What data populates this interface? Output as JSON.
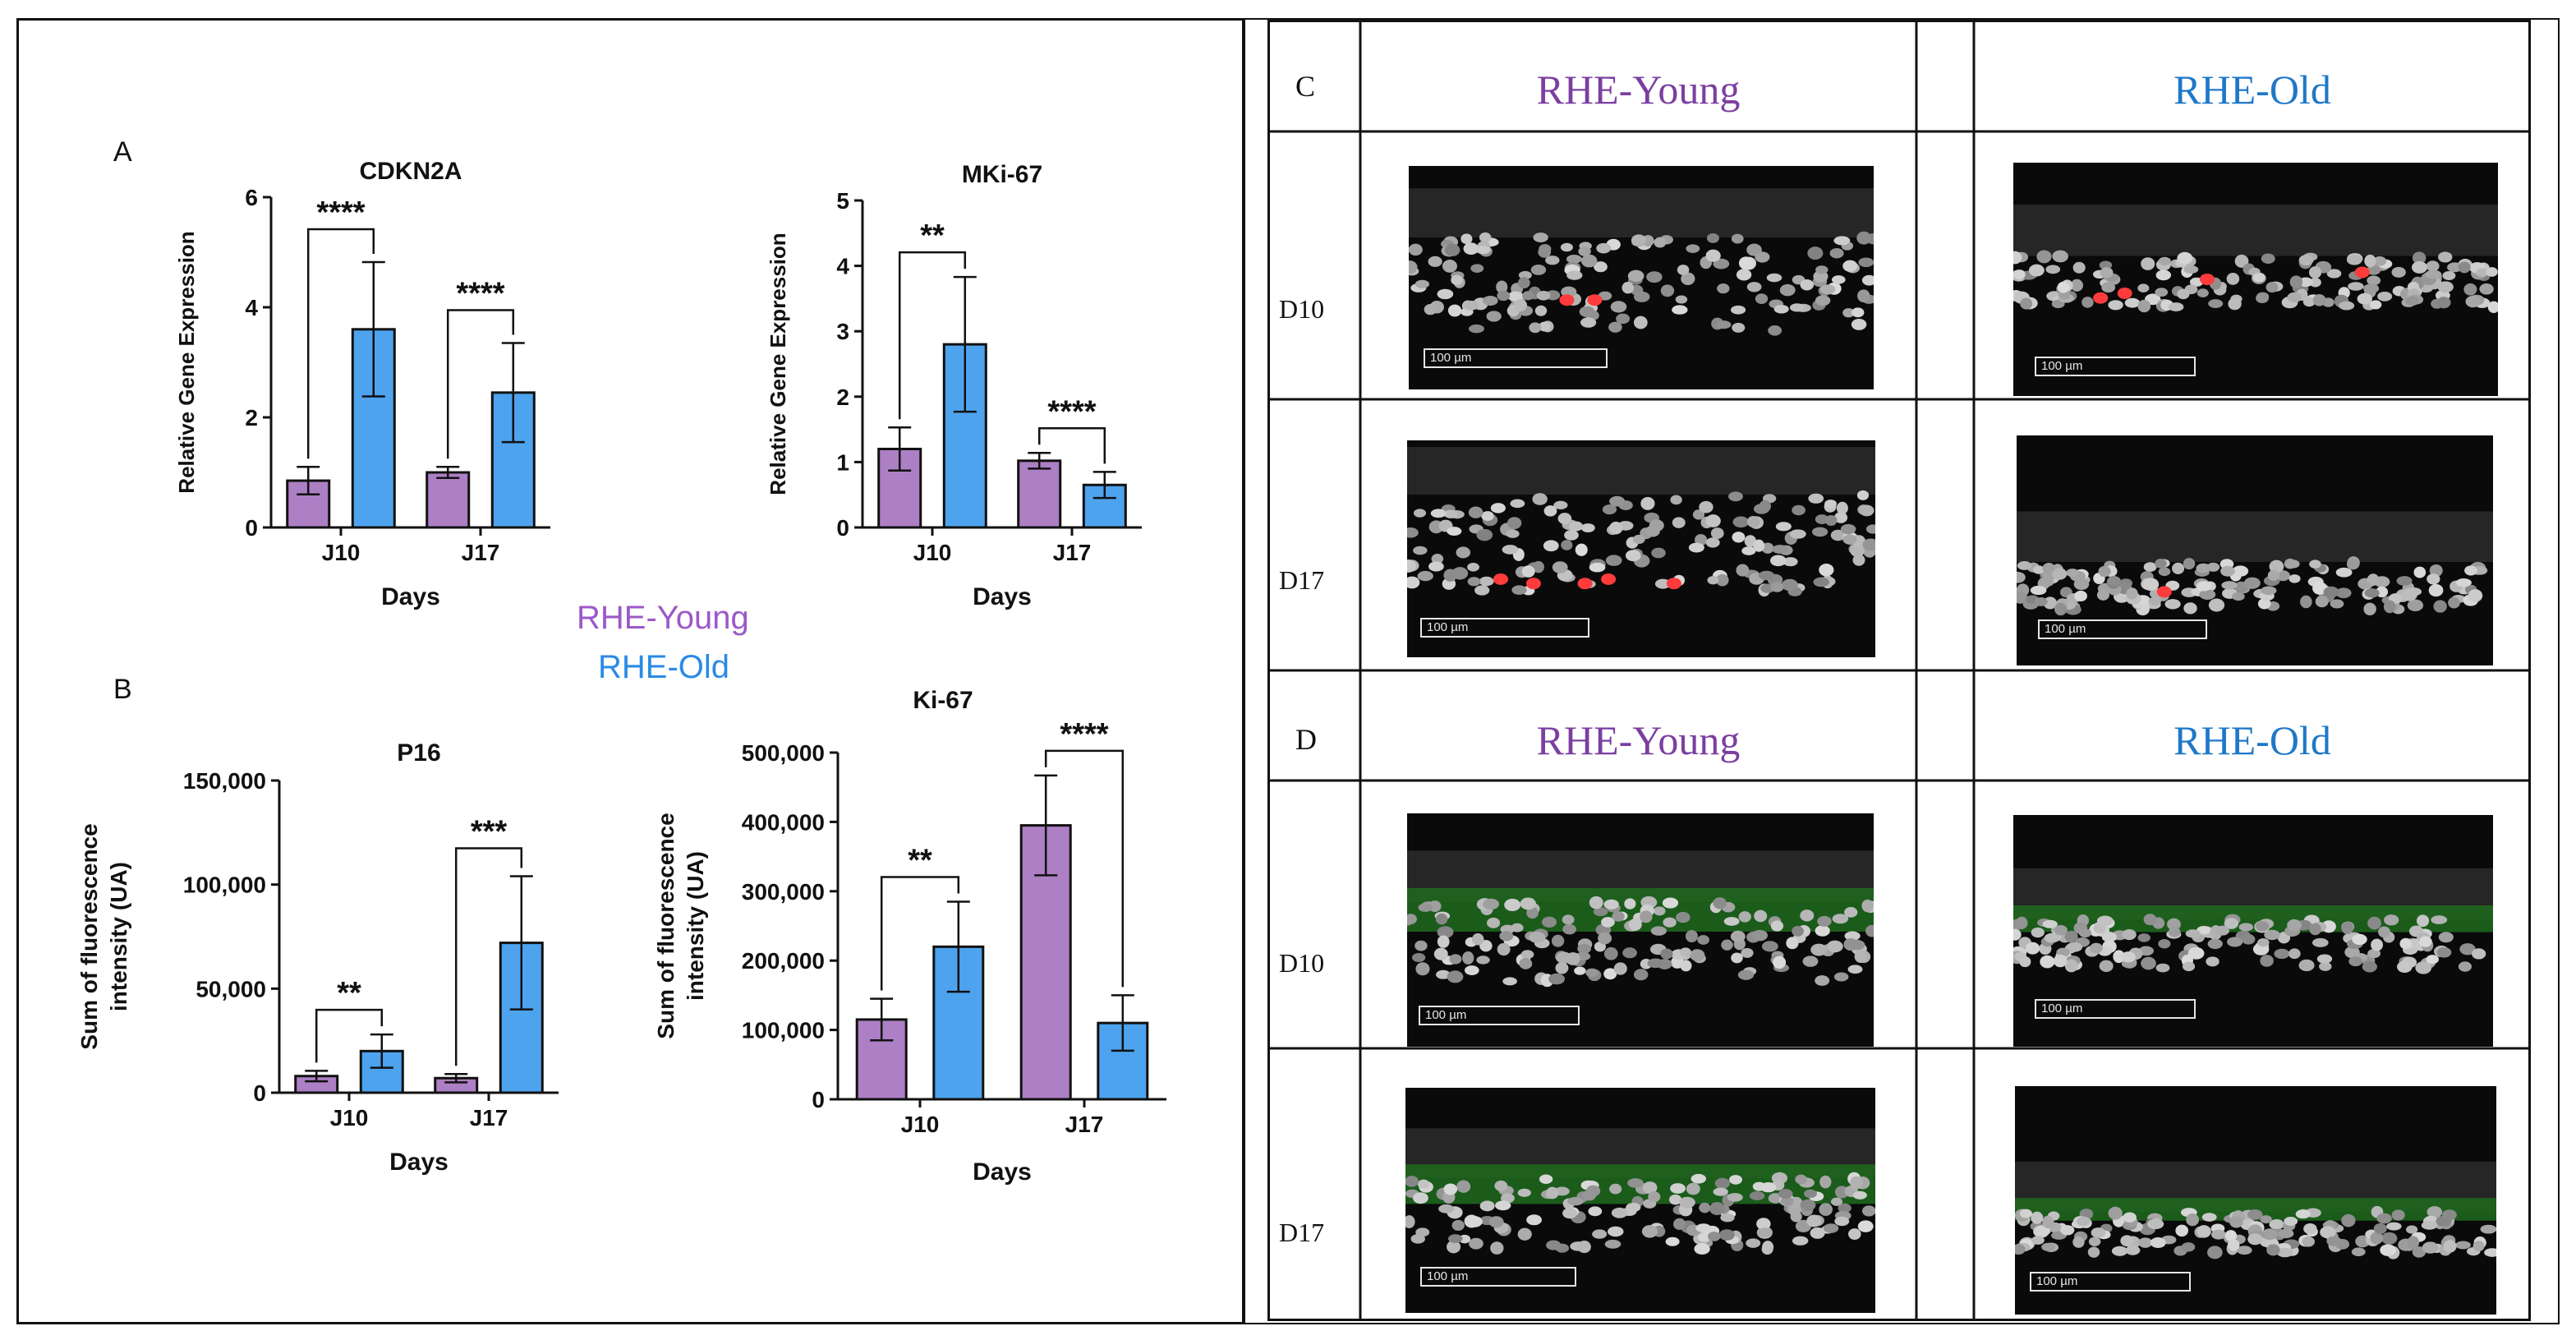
{
  "panel_labels": {
    "A": "A",
    "B": "B",
    "C": "C",
    "D": "D"
  },
  "legend": {
    "young": "RHE-Young",
    "old": "RHE-Old"
  },
  "colors": {
    "young": "#ad7fc4",
    "old": "#4da3ee",
    "young_text": "#7b3fa0",
    "old_text": "#1f78c8"
  },
  "chart_data": [
    {
      "id": "cdkn2a",
      "type": "bar",
      "title": "CDKN2A",
      "categories": [
        "J10",
        "J17"
      ],
      "series": [
        {
          "name": "RHE-Young",
          "values": [
            0.85,
            1.0
          ],
          "errors": [
            0.25,
            0.1
          ]
        },
        {
          "name": "RHE-Old",
          "values": [
            3.6,
            2.45
          ],
          "errors": [
            1.22,
            0.9
          ]
        }
      ],
      "xlabel": "Days",
      "ylabel": "Relative Gene Expression",
      "ylim": [
        0,
        6
      ],
      "yticks": [
        0,
        2,
        4,
        6
      ],
      "ytick_labels": [
        "0",
        "2",
        "4",
        "6"
      ],
      "significance": [
        "****",
        "****"
      ]
    },
    {
      "id": "mki67",
      "type": "bar",
      "title": "MKi-67",
      "categories": [
        "J10",
        "J17"
      ],
      "series": [
        {
          "name": "RHE-Young",
          "values": [
            1.2,
            1.02
          ],
          "errors": [
            0.33,
            0.12
          ]
        },
        {
          "name": "RHE-Old",
          "values": [
            2.8,
            0.65
          ],
          "errors": [
            1.03,
            0.2
          ]
        }
      ],
      "xlabel": "Days",
      "ylabel": "Relative Gene Expression",
      "ylim": [
        0,
        5
      ],
      "yticks": [
        0,
        1,
        2,
        3,
        4,
        5
      ],
      "ytick_labels": [
        "0",
        "1",
        "2",
        "3",
        "4",
        "5"
      ],
      "significance": [
        "**",
        "****"
      ]
    },
    {
      "id": "p16",
      "type": "bar",
      "title": "P16",
      "categories": [
        "J10",
        "J17"
      ],
      "series": [
        {
          "name": "RHE-Young",
          "values": [
            8000,
            7000
          ],
          "errors": [
            2500,
            2000
          ]
        },
        {
          "name": "RHE-Old",
          "values": [
            20000,
            72000
          ],
          "errors": [
            8000,
            32000
          ]
        }
      ],
      "xlabel": "Days",
      "ylabel": "Sum of fluorescence intensity (UA)",
      "ylim": [
        0,
        150000
      ],
      "yticks": [
        0,
        50000,
        100000,
        150000
      ],
      "ytick_labels": [
        "0",
        "50,000",
        "100,000",
        "150,000"
      ],
      "significance": [
        "**",
        "***"
      ]
    },
    {
      "id": "ki67",
      "type": "bar",
      "title": "Ki-67",
      "categories": [
        "J10",
        "J17"
      ],
      "series": [
        {
          "name": "RHE-Young",
          "values": [
            115000,
            395000
          ],
          "errors": [
            30000,
            72000
          ]
        },
        {
          "name": "RHE-Old",
          "values": [
            220000,
            110000
          ],
          "errors": [
            65000,
            40000
          ]
        }
      ],
      "xlabel": "Days",
      "ylabel": "Sum of fluorescence intensity (UA)",
      "ylim": [
        0,
        500000
      ],
      "yticks": [
        0,
        100000,
        200000,
        300000,
        400000,
        500000
      ],
      "ytick_labels": [
        "0",
        "100,000",
        "200,000",
        "300,000",
        "400,000",
        "500,000"
      ],
      "significance": [
        "**",
        "****"
      ]
    }
  ],
  "images": {
    "C_header": {
      "young": "RHE-Young",
      "old": "RHE-Old"
    },
    "D_header": {
      "young": "RHE-Young",
      "old": "RHE-Old"
    },
    "rows": {
      "d10": "D10",
      "d17": "D17"
    },
    "scale_label": "100 µm"
  }
}
